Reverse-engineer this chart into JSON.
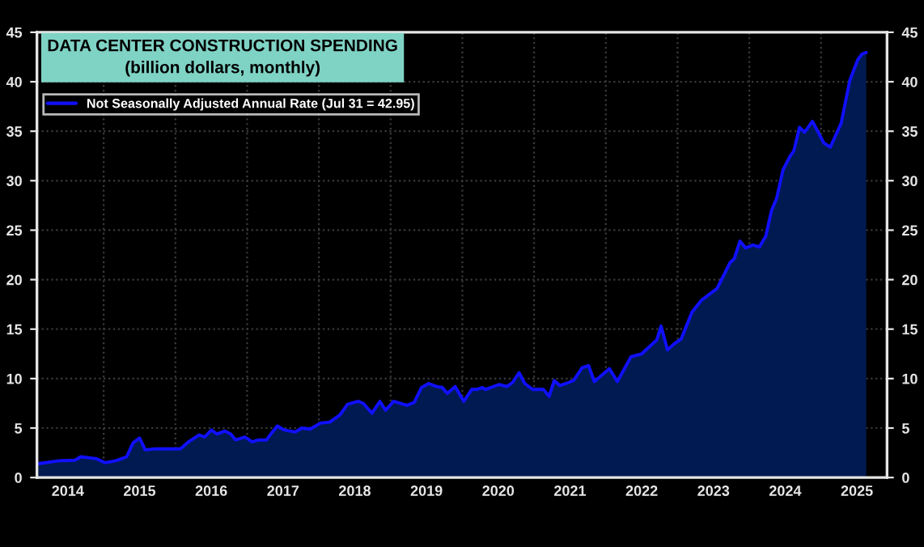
{
  "chart_data": {
    "type": "area",
    "title": "DATA CENTER CONSTRUCTION SPENDING",
    "subtitle": "(billion dollars, monthly)",
    "x": [
      2014.09,
      2014.38,
      2014.6,
      2014.68,
      2014.79,
      2014.9,
      2015.02,
      2015.17,
      2015.32,
      2015.41,
      2015.5,
      2015.58,
      2015.73,
      2015.96,
      2016.07,
      2016.18,
      2016.33,
      2016.41,
      2016.5,
      2016.58,
      2016.69,
      2016.77,
      2016.84,
      2016.97,
      2017.07,
      2017.16,
      2017.27,
      2017.32,
      2017.42,
      2017.52,
      2017.67,
      2017.76,
      2017.88,
      2018.02,
      2018.15,
      2018.29,
      2018.4,
      2018.55,
      2018.62,
      2018.74,
      2018.85,
      2018.93,
      2019.04,
      2019.23,
      2019.33,
      2019.43,
      2019.53,
      2019.64,
      2019.72,
      2019.79,
      2019.9,
      2020.02,
      2020.13,
      2020.2,
      2020.28,
      2020.32,
      2020.51,
      2020.62,
      2020.7,
      2020.79,
      2020.87,
      2020.98,
      2021.13,
      2021.21,
      2021.28,
      2021.36,
      2021.48,
      2021.55,
      2021.67,
      2021.76,
      2021.84,
      2022.05,
      2022.16,
      2022.35,
      2022.5,
      2022.62,
      2022.71,
      2022.77,
      2022.86,
      2022.95,
      2023.05,
      2023.2,
      2023.33,
      2023.55,
      2023.73,
      2023.79,
      2023.87,
      2023.95,
      2024.05,
      2024.14,
      2024.23,
      2024.31,
      2024.38,
      2024.47,
      2024.57,
      2024.62,
      2024.7,
      2024.77,
      2024.88,
      2025.04,
      2025.13,
      2025.28,
      2025.4,
      2025.51,
      2025.57,
      2025.63
    ],
    "series": [
      {
        "name": "Not Seasonally Adjusted Annual Rate (Jul 31 = 42.95)",
        "color": "#1010ff",
        "values": [
          1.4,
          1.7,
          1.75,
          2.1,
          2.0,
          1.9,
          1.5,
          1.7,
          2.1,
          3.5,
          4.0,
          2.8,
          2.9,
          2.9,
          2.9,
          3.6,
          4.3,
          4.1,
          4.8,
          4.4,
          4.7,
          4.4,
          3.8,
          4.1,
          3.6,
          3.8,
          3.8,
          4.3,
          5.2,
          4.8,
          4.6,
          5.0,
          4.9,
          5.5,
          5.6,
          6.3,
          7.4,
          7.7,
          7.5,
          6.5,
          7.7,
          6.8,
          7.7,
          7.3,
          7.6,
          9.1,
          9.5,
          9.2,
          9.1,
          8.5,
          9.2,
          7.7,
          8.9,
          8.9,
          9.1,
          8.9,
          9.4,
          9.2,
          9.6,
          10.6,
          9.5,
          8.9,
          8.9,
          8.2,
          9.8,
          9.3,
          9.6,
          9.8,
          11.1,
          11.3,
          9.7,
          11.0,
          9.7,
          12.2,
          12.5,
          13.3,
          13.9,
          15.3,
          12.9,
          13.5,
          14.0,
          16.7,
          17.9,
          19.1,
          21.7,
          22.1,
          23.9,
          23.2,
          23.5,
          23.3,
          24.4,
          27.0,
          28.2,
          31.1,
          32.5,
          33.0,
          35.4,
          34.9,
          36.0,
          33.8,
          33.4,
          35.8,
          40.1,
          42.2,
          42.8,
          42.95
        ]
      }
    ],
    "xlim": [
      2014.07,
      2025.92
    ],
    "xticks": [
      {
        "value": 2015,
        "label": null
      },
      {
        "value": 2016,
        "label": null
      },
      {
        "value": 2017,
        "label": null
      },
      {
        "value": 2018,
        "label": null
      },
      {
        "value": 2019,
        "label": null
      },
      {
        "value": 2020,
        "label": null
      },
      {
        "value": 2021,
        "label": null
      },
      {
        "value": 2022,
        "label": null
      },
      {
        "value": 2023,
        "label": null
      },
      {
        "value": 2024,
        "label": null
      },
      {
        "value": 2025,
        "label": null
      },
      {
        "value": 2014.5,
        "label": "2014"
      },
      {
        "value": 2015.5,
        "label": "2015"
      },
      {
        "value": 2016.5,
        "label": "2016"
      },
      {
        "value": 2017.5,
        "label": "2017"
      },
      {
        "value": 2018.5,
        "label": "2018"
      },
      {
        "value": 2019.5,
        "label": "2019"
      },
      {
        "value": 2020.5,
        "label": "2020"
      },
      {
        "value": 2021.5,
        "label": "2021"
      },
      {
        "value": 2022.5,
        "label": "2022"
      },
      {
        "value": 2023.5,
        "label": "2023"
      },
      {
        "value": 2024.5,
        "label": "2024"
      },
      {
        "value": 2025.5,
        "label": "2025"
      }
    ],
    "ylim": [
      0,
      45
    ],
    "yticks": [
      0,
      5,
      10,
      15,
      20,
      25,
      30,
      35,
      40,
      45
    ],
    "y2lim": [
      0,
      45
    ],
    "y2ticks": [
      0,
      5,
      10,
      15,
      20,
      25,
      30,
      35,
      40,
      45
    ],
    "grid": true,
    "legend": "top left"
  }
}
